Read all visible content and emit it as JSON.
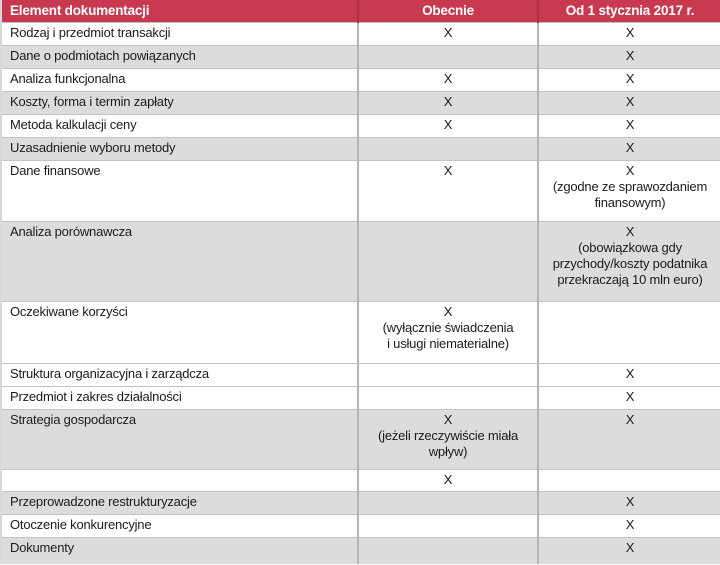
{
  "colors": {
    "header_bg": "#c8394f",
    "header_separator": "#a93046",
    "header_text": "#ffffff",
    "shaded_row_bg": "#dcdcdc",
    "grid_line": "#c3c3c3",
    "column_separator": "#b5b5b5",
    "body_text": "#1b1b1b"
  },
  "chart_data": {
    "type": "table",
    "title": "",
    "columns": [
      "Element dokumentacji",
      "Obecnie",
      "Od 1 stycznia 2017 r."
    ],
    "rows": [
      {
        "element": "Rodzaj i przedmiot transakcji",
        "obecnie": "X",
        "od_2017": "X",
        "shaded": false
      },
      {
        "element": "Dane o podmiotach powiązanych",
        "obecnie": "",
        "od_2017": "X",
        "shaded": true
      },
      {
        "element": "Analiza funkcjonalna",
        "obecnie": "X",
        "od_2017": "X",
        "shaded": false
      },
      {
        "element": "Koszty, forma i termin zapłaty",
        "obecnie": "X",
        "od_2017": "X",
        "shaded": true
      },
      {
        "element": "Metoda kalkulacji ceny",
        "obecnie": "X",
        "od_2017": "X",
        "shaded": false
      },
      {
        "element": "Uzasadnienie wyboru metody",
        "obecnie": "",
        "od_2017": "X",
        "shaded": true
      },
      {
        "element": "Dane finansowe",
        "obecnie": "X",
        "od_2017": "X\n(zgodne ze sprawozdaniem\nfinansowym)",
        "shaded": false
      },
      {
        "element": "Analiza porównawcza",
        "obecnie": "",
        "od_2017": "X\n(obowiązkowa gdy\nprzychody/koszty podatnika\nprzekraczają 10 mln euro)",
        "shaded": true
      },
      {
        "element": "Oczekiwane korzyści",
        "obecnie": "X\n(wyłącznie świadczenia\ni usługi niematerialne)",
        "od_2017": "",
        "shaded": false
      },
      {
        "element": "Struktura organizacyjna i zarządcza",
        "obecnie": "",
        "od_2017": "X",
        "shaded": false
      },
      {
        "element": "Przedmiot i zakres działalności",
        "obecnie": "",
        "od_2017": "X",
        "shaded": false
      },
      {
        "element": "Strategia gospodarcza",
        "obecnie": "X\n(jeżeli rzeczywiście miała\nwpływ)",
        "od_2017": "X",
        "shaded": true
      },
      {
        "element": "",
        "obecnie": "X",
        "od_2017": "",
        "shaded": false
      },
      {
        "element": "Przeprowadzone restrukturyzacje",
        "obecnie": "",
        "od_2017": "X",
        "shaded": true
      },
      {
        "element": "Otoczenie konkurencyjne",
        "obecnie": "",
        "od_2017": "X",
        "shaded": false
      },
      {
        "element": "Dokumenty",
        "obecnie": "",
        "od_2017": "X",
        "shaded": true
      }
    ]
  }
}
